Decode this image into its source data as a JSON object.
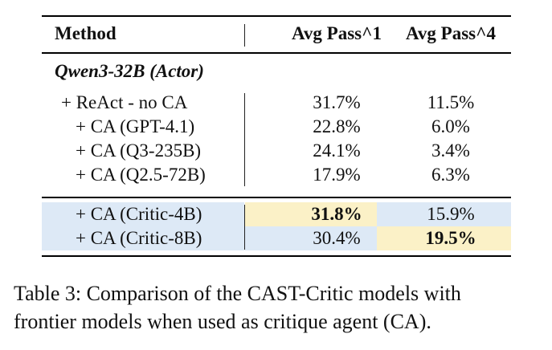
{
  "table": {
    "headers": {
      "method": "Method",
      "pass1": "Avg Pass^1",
      "pass4": "Avg Pass^4"
    },
    "group_label": "Qwen3-32B (Actor)",
    "rows": [
      {
        "method": "+ ReAct - no CA",
        "pass1": "31.7%",
        "pass4": "11.5%"
      },
      {
        "method": "+ CA (GPT-4.1)",
        "pass1": "22.8%",
        "pass4": "6.0%"
      },
      {
        "method": "+ CA (Q3-235B)",
        "pass1": "24.1%",
        "pass4": "3.4%"
      },
      {
        "method": "+ CA (Q2.5-72B)",
        "pass1": "17.9%",
        "pass4": "6.3%"
      }
    ],
    "critic_rows": [
      {
        "method": "+ CA (Critic-4B)",
        "pass1": "31.8%",
        "pass4": "15.9%"
      },
      {
        "method": "+ CA (Critic-8B)",
        "pass1": "30.4%",
        "pass4": "19.5%"
      }
    ],
    "colors": {
      "highlight_blue": "#dde9f6",
      "highlight_yellow": "#fbf1c7"
    }
  },
  "caption": {
    "line1": "Table 3: Comparison of the CAST-Critic models with",
    "line2": "frontier models when used as critique agent (CA)."
  }
}
